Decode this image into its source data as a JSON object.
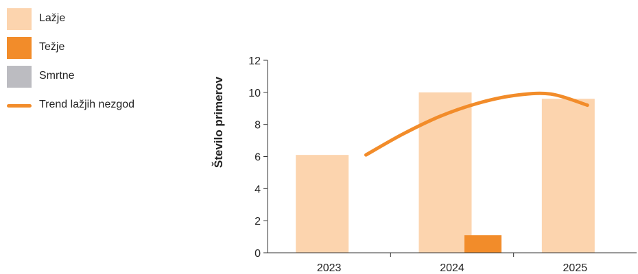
{
  "chart_data": {
    "type": "bar",
    "categories": [
      "2023",
      "2024",
      "2025"
    ],
    "ylabel": "Število primerov",
    "xlabel": "",
    "ylim": [
      0,
      12
    ],
    "yticks": [
      0,
      2,
      4,
      6,
      8,
      10,
      12
    ],
    "grid": false,
    "legend_position": "top-left",
    "series": [
      {
        "name": "Lažje",
        "kind": "bar",
        "color": "#fcd4ae",
        "values": [
          6.1,
          10.0,
          9.6
        ]
      },
      {
        "name": "Težje",
        "kind": "bar",
        "color": "#f28c2a",
        "values": [
          0,
          1.1,
          0
        ]
      },
      {
        "name": "Smrtne",
        "kind": "bar",
        "color": "#bcbcc1",
        "values": [
          0,
          0,
          0
        ]
      },
      {
        "name": "Trend lažjih nezgod",
        "kind": "line",
        "color": "#f28c2a",
        "x": [
          2023.3,
          2023.6,
          2023.9,
          2024.2,
          2024.5,
          2024.8,
          2025.1
        ],
        "values": [
          6.1,
          7.4,
          8.5,
          9.3,
          9.8,
          9.9,
          9.2
        ]
      }
    ]
  }
}
